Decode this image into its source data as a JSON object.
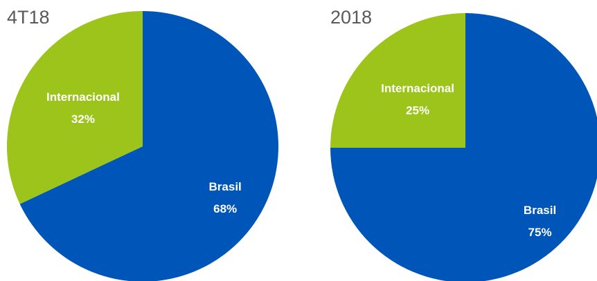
{
  "chart_data": [
    {
      "type": "pie",
      "title": "4T18",
      "categories": [
        "Brasil",
        "Internacional"
      ],
      "values": [
        68,
        32
      ],
      "value_labels": [
        "68%",
        "32%"
      ],
      "colors": [
        "#0055b8",
        "#9dc41a"
      ]
    },
    {
      "type": "pie",
      "title": "2018",
      "categories": [
        "Brasil",
        "Internacional"
      ],
      "values": [
        75,
        25
      ],
      "value_labels": [
        "75%",
        "25%"
      ],
      "colors": [
        "#0055b8",
        "#9dc41a"
      ]
    }
  ]
}
